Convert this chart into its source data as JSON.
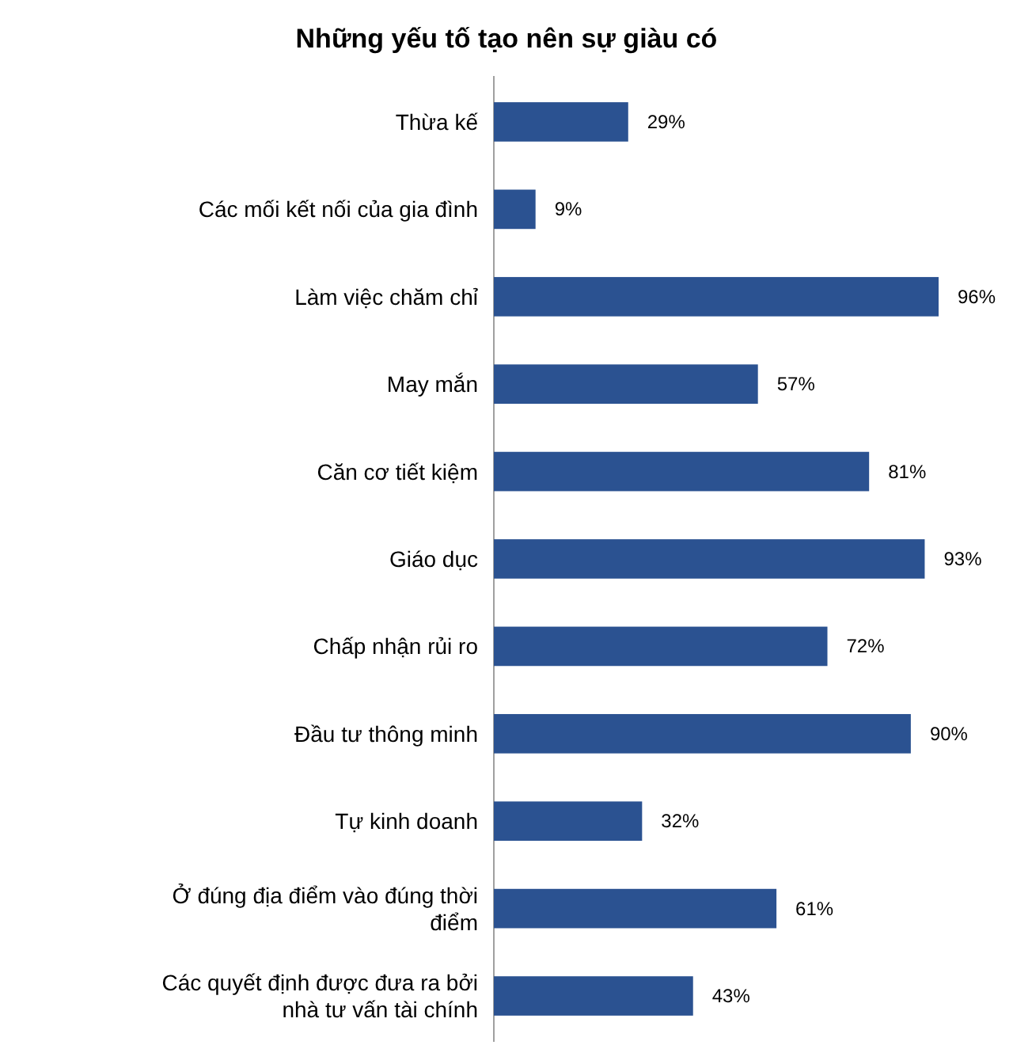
{
  "chart_data": {
    "type": "bar",
    "orientation": "horizontal",
    "title": "Những yếu tố tạo nên sự giàu có",
    "categories": [
      "Thừa kế",
      "Các mối kết nối của gia đình",
      "Làm việc chăm chỉ",
      "May mắn",
      "Căn cơ tiết kiệm",
      "Giáo dục",
      "Chấp nhận rủi ro",
      "Đầu tư thông minh",
      "Tự kinh doanh",
      "Ở đúng địa điểm vào đúng thời điểm",
      "Các quyết định được đưa ra bởi nhà tư vấn tài chính"
    ],
    "values": [
      29,
      9,
      96,
      57,
      81,
      93,
      72,
      90,
      32,
      61,
      43
    ],
    "value_labels": [
      "29%",
      "9%",
      "96%",
      "57%",
      "81%",
      "93%",
      "72%",
      "90%",
      "32%",
      "61%",
      "43%"
    ],
    "color": "#2b5291"
  }
}
